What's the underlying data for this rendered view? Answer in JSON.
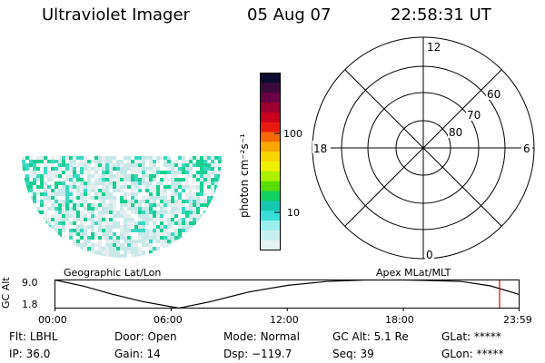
{
  "header": {
    "instrument": "Ultraviolet Imager",
    "date": "05 Aug 07",
    "time": "22:58:31 UT"
  },
  "colorbar": {
    "label": "photon cm⁻²s⁻¹",
    "ticks": [
      "100",
      "10"
    ],
    "colors": [
      "#0b0b2e",
      "#3a0a3a",
      "#6a0046",
      "#9a0030",
      "#c8001e",
      "#e81a10",
      "#f56a00",
      "#f8a800",
      "#f8d400",
      "#eef000",
      "#aaf000",
      "#55e000",
      "#10d060",
      "#14c8b0",
      "#36e0d8",
      "#9aeeee",
      "#c8f0f0",
      "#e4f2f2"
    ]
  },
  "polar_plot": {
    "mlt_labels": [
      "12",
      "18",
      "6",
      "0"
    ],
    "lat_labels": [
      "60",
      "70",
      "80"
    ]
  },
  "image_panel": {
    "colors": [
      "#ffffff",
      "#e6eef0",
      "#c8e8e8",
      "#7fe0d8",
      "#3ad8c0",
      "#18d090"
    ]
  },
  "altitude_plot": {
    "axis_label": "GC Alt",
    "y_ticks": [
      "9.0",
      "1.8"
    ],
    "x_ticks": [
      "00:00",
      "06:00",
      "12:00",
      "18:00",
      "23:59"
    ],
    "geo_label": "Geographic Lat/Lon",
    "apex_label": "Apex MLat/MLT",
    "marker_color": "#e00000",
    "chart_data": {
      "type": "line",
      "xlabel": "",
      "ylabel": "GC Alt",
      "xlim_hours": [
        0,
        23.98
      ],
      "ylim": [
        1.8,
        9.0
      ],
      "series": [
        {
          "x": [
            0,
            1.5,
            3,
            4.5,
            6.4,
            8,
            10,
            12,
            14,
            16,
            18,
            19,
            21,
            22.5,
            23.98
          ],
          "values": [
            9.0,
            7.4,
            5.3,
            3.5,
            1.8,
            3.4,
            5.9,
            7.6,
            8.6,
            9.0,
            9.0,
            8.9,
            8.6,
            7.5,
            5.3
          ]
        }
      ],
      "current_time_hours": 22.97
    }
  },
  "status": {
    "row1": [
      {
        "label": "Flt:",
        "value": "LBHL"
      },
      {
        "label": "Door:",
        "value": "Open"
      },
      {
        "label": "Mode:",
        "value": "Normal"
      },
      {
        "label": "GC Alt:",
        "value": "5.1 Re"
      },
      {
        "label": "GLat:",
        "value": "*****"
      }
    ],
    "row2": [
      {
        "label": "IP:",
        "value": "36.0"
      },
      {
        "label": "Gain:",
        "value": "14"
      },
      {
        "label": "Dsp:",
        "value": "−119.7"
      },
      {
        "label": "Seq:",
        "value": "39"
      },
      {
        "label": "GLon:",
        "value": "*****"
      }
    ]
  }
}
